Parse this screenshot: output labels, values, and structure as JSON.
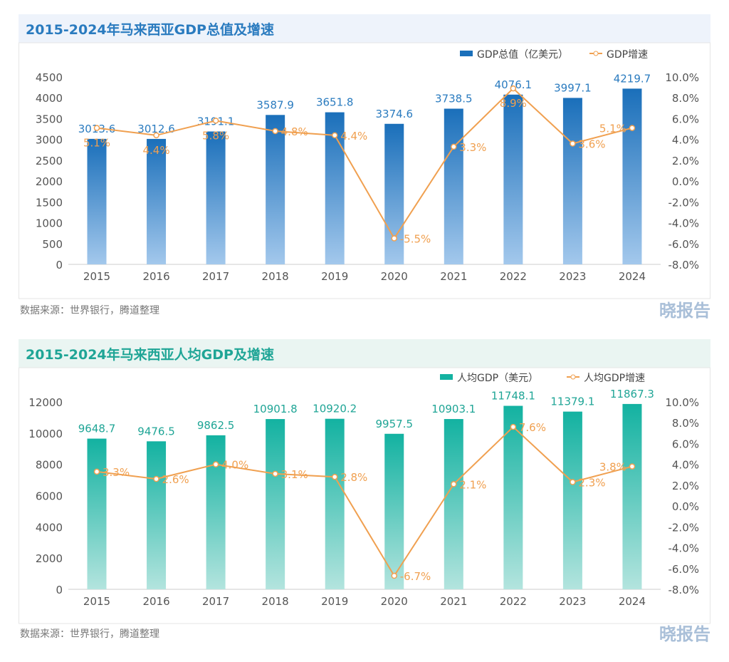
{
  "colors": {
    "line": "#f0a050",
    "c1_title": "#2a7bbf",
    "c2_title": "#1fa596",
    "c1_header_bg": "#eef3fb",
    "c2_header_bg": "#eaf5f2",
    "c1_bar_top": "#1a6fba",
    "c1_bar_bottom": "#a3c8ec",
    "c2_bar_top": "#13b2a1",
    "c2_bar_bottom": "#b3e4de"
  },
  "logo": "晓报告",
  "chart_data": [
    {
      "type": "bar+line",
      "title": "2015-2024年马来西亚GDP总值及增速",
      "source": "数据来源：世界银行，腾道整理",
      "categories": [
        "2015",
        "2016",
        "2017",
        "2018",
        "2019",
        "2020",
        "2021",
        "2022",
        "2023",
        "2024"
      ],
      "series": [
        {
          "name": "GDP总值（亿美元）",
          "type": "bar",
          "axis": "left",
          "values": [
            3013.6,
            3012.6,
            3191.1,
            3587.9,
            3651.8,
            3374.6,
            3738.5,
            4076.1,
            3997.1,
            4219.7
          ]
        },
        {
          "name": "GDP增速",
          "type": "line",
          "axis": "right",
          "values": [
            5.1,
            4.4,
            5.8,
            4.8,
            4.4,
            -5.5,
            3.3,
            8.9,
            3.6,
            5.1
          ]
        }
      ],
      "ylim": [
        0,
        4500
      ],
      "yticks": [
        "0",
        "500",
        "1000",
        "1500",
        "2000",
        "2500",
        "3000",
        "3500",
        "4000",
        "4500"
      ],
      "y2lim": [
        -8,
        10
      ],
      "y2ticks": [
        "-8.0%",
        "-6.0%",
        "-4.0%",
        "-2.0%",
        "0.0%",
        "2.0%",
        "4.0%",
        "6.0%",
        "8.0%",
        "10.0%"
      ],
      "legend": "top-right",
      "grid": false
    },
    {
      "type": "bar+line",
      "title": "2015-2024年马来西亚人均GDP及增速",
      "source": "数据来源：世界银行，腾道整理",
      "categories": [
        "2015",
        "2016",
        "2017",
        "2018",
        "2019",
        "2020",
        "2021",
        "2022",
        "2023",
        "2024"
      ],
      "series": [
        {
          "name": "人均GDP（美元）",
          "type": "bar",
          "axis": "left",
          "values": [
            9648.7,
            9476.5,
            9862.5,
            10901.8,
            10920.2,
            9957.5,
            10903.1,
            11748.1,
            11379.1,
            11867.3
          ]
        },
        {
          "name": "人均GDP增速",
          "type": "line",
          "axis": "right",
          "values": [
            3.3,
            2.6,
            4.0,
            3.1,
            2.8,
            -6.7,
            2.1,
            7.6,
            2.3,
            3.8
          ]
        }
      ],
      "ylim": [
        0,
        12000
      ],
      "yticks": [
        "0",
        "2000",
        "4000",
        "6000",
        "8000",
        "10000",
        "12000"
      ],
      "y2lim": [
        -8,
        10
      ],
      "y2ticks": [
        "-8.0%",
        "-6.0%",
        "-4.0%",
        "-2.0%",
        "0.0%",
        "2.0%",
        "4.0%",
        "6.0%",
        "8.0%",
        "10.0%"
      ],
      "legend": "top-right",
      "grid": false
    }
  ]
}
